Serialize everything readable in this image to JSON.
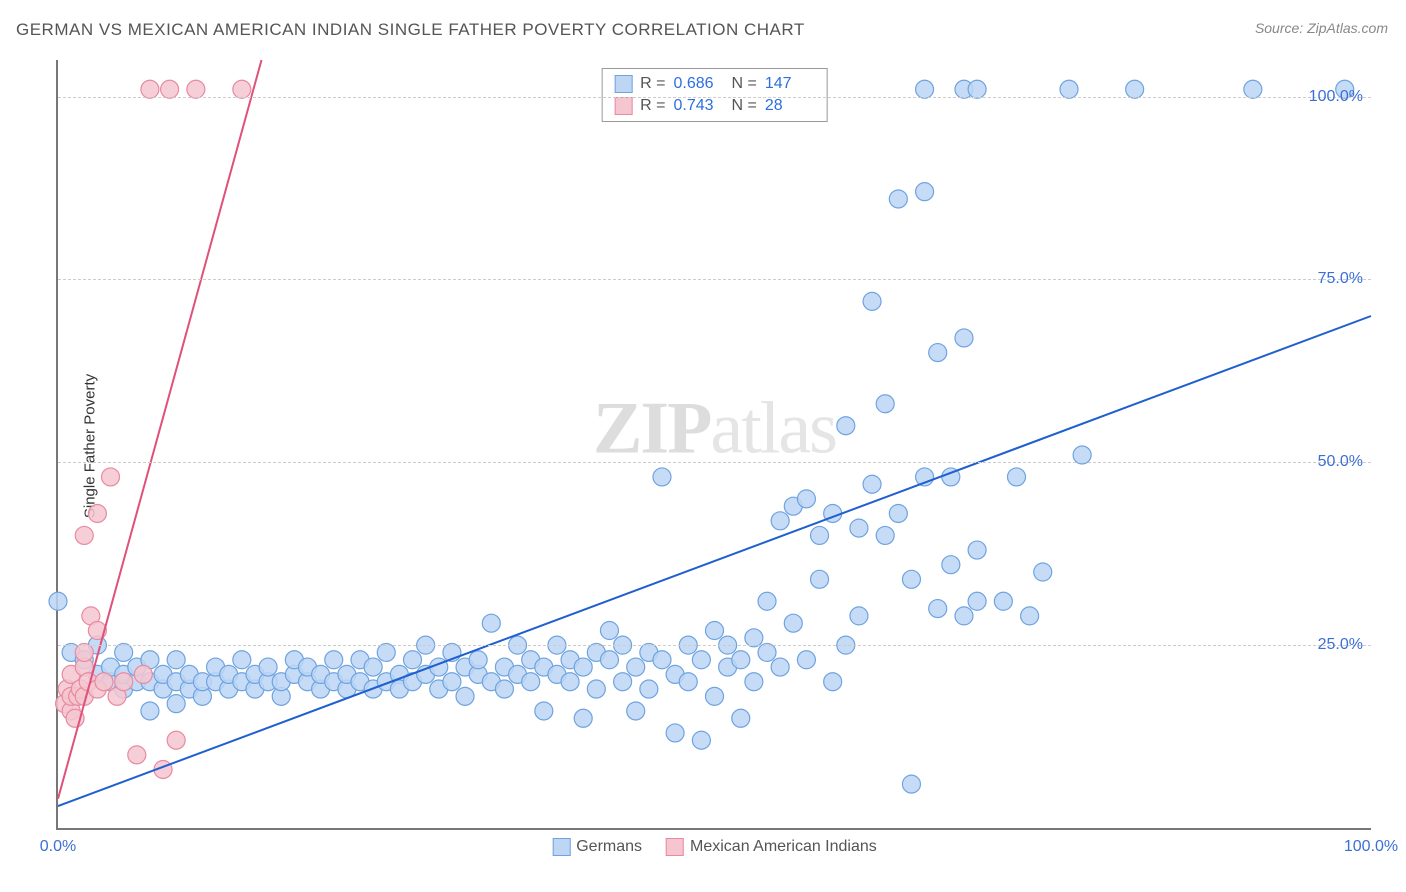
{
  "title": "GERMAN VS MEXICAN AMERICAN INDIAN SINGLE FATHER POVERTY CORRELATION CHART",
  "source": "Source: ZipAtlas.com",
  "ylabel": "Single Father Poverty",
  "watermark_a": "ZIP",
  "watermark_b": "atlas",
  "chart": {
    "type": "scatter",
    "xlim": [
      0,
      100
    ],
    "ylim": [
      0,
      105
    ],
    "x_ticks": [
      {
        "v": 0,
        "label": "0.0%"
      },
      {
        "v": 100,
        "label": "100.0%"
      }
    ],
    "y_ticks": [
      {
        "v": 25,
        "label": "25.0%"
      },
      {
        "v": 50,
        "label": "50.0%"
      },
      {
        "v": 75,
        "label": "75.0%"
      },
      {
        "v": 100,
        "label": "100.0%"
      }
    ],
    "background_color": "#ffffff",
    "grid_color": "#cccccc",
    "marker_radius": 9,
    "marker_stroke_width": 1.2,
    "line_width": 2,
    "series": [
      {
        "name": "Germans",
        "fill": "#bcd6f4",
        "stroke": "#6fa3e0",
        "line_color": "#1f5fd0",
        "R": "0.686",
        "N": "147",
        "regression": {
          "x1": 0,
          "y1": 3,
          "x2": 100,
          "y2": 70
        },
        "points": [
          [
            0,
            31
          ],
          [
            1,
            24
          ],
          [
            2,
            23
          ],
          [
            3,
            21
          ],
          [
            3,
            25
          ],
          [
            4,
            20
          ],
          [
            4,
            22
          ],
          [
            5,
            19
          ],
          [
            5,
            21
          ],
          [
            5,
            24
          ],
          [
            6,
            20
          ],
          [
            6,
            22
          ],
          [
            7,
            16
          ],
          [
            7,
            20
          ],
          [
            7,
            23
          ],
          [
            8,
            19
          ],
          [
            8,
            21
          ],
          [
            9,
            17
          ],
          [
            9,
            20
          ],
          [
            9,
            23
          ],
          [
            10,
            19
          ],
          [
            10,
            21
          ],
          [
            11,
            18
          ],
          [
            11,
            20
          ],
          [
            12,
            20
          ],
          [
            12,
            22
          ],
          [
            13,
            19
          ],
          [
            13,
            21
          ],
          [
            14,
            20
          ],
          [
            14,
            23
          ],
          [
            15,
            19
          ],
          [
            15,
            21
          ],
          [
            16,
            20
          ],
          [
            16,
            22
          ],
          [
            17,
            18
          ],
          [
            17,
            20
          ],
          [
            18,
            21
          ],
          [
            18,
            23
          ],
          [
            19,
            20
          ],
          [
            19,
            22
          ],
          [
            20,
            19
          ],
          [
            20,
            21
          ],
          [
            21,
            20
          ],
          [
            21,
            23
          ],
          [
            22,
            19
          ],
          [
            22,
            21
          ],
          [
            23,
            20
          ],
          [
            23,
            23
          ],
          [
            24,
            19
          ],
          [
            24,
            22
          ],
          [
            25,
            20
          ],
          [
            25,
            24
          ],
          [
            26,
            21
          ],
          [
            26,
            19
          ],
          [
            27,
            20
          ],
          [
            27,
            23
          ],
          [
            28,
            21
          ],
          [
            28,
            25
          ],
          [
            29,
            19
          ],
          [
            29,
            22
          ],
          [
            30,
            20
          ],
          [
            30,
            24
          ],
          [
            31,
            22
          ],
          [
            31,
            18
          ],
          [
            32,
            21
          ],
          [
            32,
            23
          ],
          [
            33,
            20
          ],
          [
            33,
            28
          ],
          [
            34,
            22
          ],
          [
            34,
            19
          ],
          [
            35,
            21
          ],
          [
            35,
            25
          ],
          [
            36,
            20
          ],
          [
            36,
            23
          ],
          [
            37,
            22
          ],
          [
            37,
            16
          ],
          [
            38,
            21
          ],
          [
            38,
            25
          ],
          [
            39,
            20
          ],
          [
            39,
            23
          ],
          [
            40,
            22
          ],
          [
            40,
            15
          ],
          [
            41,
            24
          ],
          [
            41,
            19
          ],
          [
            42,
            23
          ],
          [
            42,
            27
          ],
          [
            43,
            20
          ],
          [
            43,
            25
          ],
          [
            44,
            22
          ],
          [
            44,
            16
          ],
          [
            45,
            24
          ],
          [
            45,
            19
          ],
          [
            46,
            23
          ],
          [
            46,
            48
          ],
          [
            47,
            21
          ],
          [
            47,
            13
          ],
          [
            48,
            25
          ],
          [
            48,
            20
          ],
          [
            49,
            12
          ],
          [
            49,
            23
          ],
          [
            50,
            27
          ],
          [
            50,
            18
          ],
          [
            51,
            22
          ],
          [
            51,
            25
          ],
          [
            52,
            23
          ],
          [
            52,
            15
          ],
          [
            53,
            26
          ],
          [
            53,
            20
          ],
          [
            54,
            24
          ],
          [
            54,
            31
          ],
          [
            55,
            22
          ],
          [
            55,
            42
          ],
          [
            56,
            28
          ],
          [
            56,
            44
          ],
          [
            57,
            45
          ],
          [
            57,
            23
          ],
          [
            58,
            34
          ],
          [
            58,
            40
          ],
          [
            59,
            43
          ],
          [
            59,
            20
          ],
          [
            60,
            25
          ],
          [
            60,
            55
          ],
          [
            61,
            41
          ],
          [
            61,
            29
          ],
          [
            62,
            47
          ],
          [
            62,
            72
          ],
          [
            63,
            58
          ],
          [
            63,
            40
          ],
          [
            64,
            86
          ],
          [
            64,
            43
          ],
          [
            65,
            34
          ],
          [
            65,
            6
          ],
          [
            66,
            48
          ],
          [
            66,
            87
          ],
          [
            67,
            30
          ],
          [
            67,
            65
          ],
          [
            68,
            36
          ],
          [
            68,
            48
          ],
          [
            69,
            67
          ],
          [
            69,
            29
          ],
          [
            70,
            38
          ],
          [
            70,
            31
          ],
          [
            72,
            31
          ],
          [
            73,
            48
          ],
          [
            74,
            29
          ],
          [
            75,
            35
          ],
          [
            78,
            51
          ],
          [
            66,
            101
          ],
          [
            69,
            101
          ],
          [
            70,
            101
          ],
          [
            77,
            101
          ],
          [
            82,
            101
          ],
          [
            91,
            101
          ],
          [
            98,
            101
          ]
        ]
      },
      {
        "name": "Mexican American Indians",
        "fill": "#f5c5d0",
        "stroke": "#e88aa0",
        "line_color": "#e0517a",
        "R": "0.743",
        "N": "28",
        "regression": {
          "x1": 0,
          "y1": 4,
          "x2": 15.5,
          "y2": 105
        },
        "points": [
          [
            0.5,
            17
          ],
          [
            0.7,
            19
          ],
          [
            1,
            16
          ],
          [
            1,
            18
          ],
          [
            1,
            21
          ],
          [
            1.3,
            15
          ],
          [
            1.5,
            18
          ],
          [
            1.7,
            19
          ],
          [
            2,
            18
          ],
          [
            2,
            22
          ],
          [
            2,
            24
          ],
          [
            2,
            40
          ],
          [
            2.3,
            20
          ],
          [
            2.5,
            29
          ],
          [
            3,
            19
          ],
          [
            3,
            27
          ],
          [
            3,
            43
          ],
          [
            3.5,
            20
          ],
          [
            4,
            48
          ],
          [
            4.5,
            18
          ],
          [
            5,
            20
          ],
          [
            6,
            10
          ],
          [
            6.5,
            21
          ],
          [
            8,
            8
          ],
          [
            9,
            12
          ],
          [
            7,
            101
          ],
          [
            8.5,
            101
          ],
          [
            10.5,
            101
          ],
          [
            14,
            101
          ]
        ]
      }
    ]
  },
  "legend": {
    "series1_label": "Germans",
    "series2_label": "Mexican American Indians"
  }
}
